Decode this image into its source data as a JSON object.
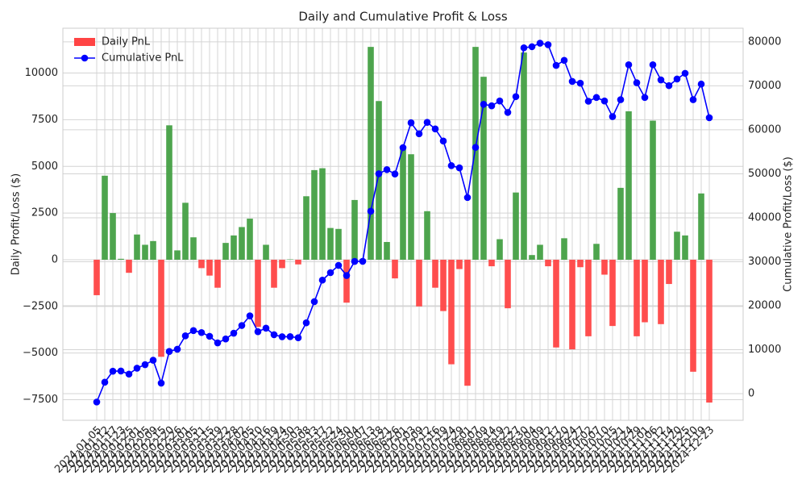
{
  "chart_data": {
    "type": "bar_line",
    "title": "Daily and Cumulative Profit & Loss",
    "y_label": "Daily Profit/Loss ($)",
    "y2_label": "Cumulative Profit/Loss ($)",
    "categories": [
      "2024-01-05",
      "2024-01-12",
      "2024-01-17",
      "2024-01-23",
      "2024-01-25",
      "2024-02-01",
      "2024-02-05",
      "2024-02-09",
      "2024-02-15",
      "2024-02-20",
      "2024-02-26",
      "2024-03-01",
      "2024-03-05",
      "2024-03-11",
      "2024-03-15",
      "2024-03-19",
      "2024-03-22",
      "2024-03-28",
      "2024-04-02",
      "2024-04-05",
      "2024-04-10",
      "2024-04-16",
      "2024-04-19",
      "2024-04-24",
      "2024-04-30",
      "2024-05-03",
      "2024-05-08",
      "2024-05-13",
      "2024-05-17",
      "2024-05-22",
      "2024-05-24",
      "2024-05-30",
      "2024-06-04",
      "2024-06-07",
      "2024-06-13",
      "2024-06-18",
      "2024-06-21",
      "2024-06-26",
      "2024-07-01",
      "2024-07-03",
      "2024-07-09",
      "2024-07-12",
      "2024-07-16",
      "2024-07-19",
      "2024-07-24",
      "2024-07-29",
      "2024-08-01",
      "2024-08-07",
      "2024-08-09",
      "2024-08-14",
      "2024-08-19",
      "2024-08-22",
      "2024-08-27",
      "2024-08-30",
      "2024-09-04",
      "2024-09-09",
      "2024-09-12",
      "2024-09-17",
      "2024-09-20",
      "2024-09-24",
      "2024-09-27",
      "2024-10-02",
      "2024-10-07",
      "2024-10-10",
      "2024-10-15",
      "2024-10-21",
      "2024-10-24",
      "2024-10-29",
      "2024-11-01",
      "2024-11-06",
      "2024-11-12",
      "2024-11-14",
      "2024-11-20",
      "2024-11-25",
      "2024-12-10",
      "2024-12-19",
      "2024-12-23"
    ],
    "series": [
      {
        "name": "Daily PnL",
        "kind": "bar",
        "color": "#ff4444",
        "positive_color": "#44a044",
        "values": [
          -1900,
          4500,
          2500,
          50,
          -700,
          1350,
          800,
          1000,
          -5200,
          7200,
          500,
          3050,
          1200,
          -450,
          -850,
          -1500,
          900,
          1300,
          1750,
          2200,
          -3600,
          800,
          -1500,
          -450,
          20,
          -250,
          3400,
          4800,
          4900,
          1700,
          1650,
          -2300,
          3200,
          30,
          11400,
          8500,
          950,
          -1000,
          6000,
          5650,
          -2500,
          2600,
          -1500,
          -2750,
          -5600,
          -500,
          -6750,
          11400,
          9800,
          -350,
          1100,
          -2600,
          3600,
          11100,
          250,
          800,
          -350,
          -4700,
          1150,
          -4800,
          -400,
          -4100,
          850,
          -800,
          -3550,
          3850,
          7950,
          -4100,
          -3350,
          7450,
          -3450,
          -1300,
          1500,
          1300,
          -6000,
          3550,
          -7650
        ]
      },
      {
        "name": "Cumulative PnL",
        "kind": "line",
        "axis": "y2",
        "color": "#0000ff",
        "values": [
          -1900,
          2600,
          5100,
          5150,
          4450,
          5800,
          6600,
          7600,
          2400,
          9600,
          10100,
          13150,
          14350,
          13900,
          13050,
          11550,
          12450,
          13750,
          15500,
          17700,
          14100,
          14900,
          13400,
          12950,
          12970,
          12720,
          16120,
          20920,
          25820,
          27520,
          29170,
          26870,
          30070,
          30100,
          41500,
          50000,
          50950,
          49950,
          55950,
          61600,
          59100,
          61700,
          60200,
          57450,
          51850,
          51350,
          44600,
          56000,
          65800,
          65450,
          66550,
          63950,
          67550,
          78650,
          78900,
          79700,
          79350,
          74650,
          75800,
          71000,
          70600,
          66500,
          67350,
          66550,
          63000,
          66850,
          74800,
          70700,
          67350,
          74800,
          71350,
          70050,
          71550,
          72850,
          66850,
          70400,
          62750
        ]
      }
    ],
    "ylim": [
      -8600,
      12400
    ],
    "yticks": [
      {
        "value": -7500,
        "label": "−7500"
      },
      {
        "value": -5000,
        "label": "−5000"
      },
      {
        "value": -2500,
        "label": "−2500"
      },
      0,
      2500,
      5000,
      7500,
      10000
    ],
    "y2lim": [
      -6050,
      83100
    ],
    "y2ticks": [
      0,
      10000,
      20000,
      30000,
      40000,
      50000,
      60000,
      70000,
      80000
    ],
    "grid": true,
    "legend": "upper left"
  }
}
